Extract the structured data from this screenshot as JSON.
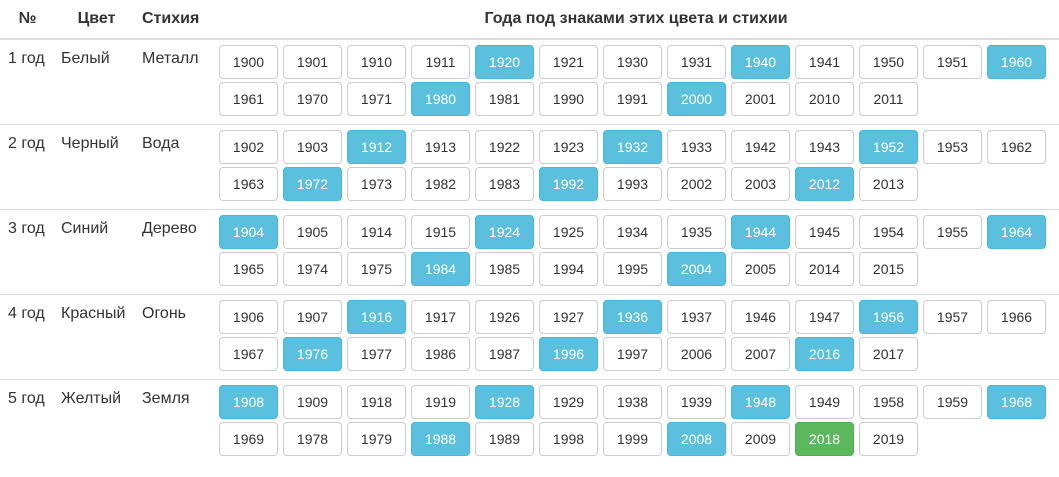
{
  "header": {
    "num": "№",
    "color": "Цвет",
    "element": "Стихия",
    "years": "Года под знаками этих цвета и стихии"
  },
  "colors": {
    "default_bg": "#ffffff",
    "active_bg": "#5bc0de",
    "current_bg": "#5cb85c"
  },
  "rows": [
    {
      "num": "1 год",
      "color": "Белый",
      "element": "Металл",
      "years": [
        {
          "y": "1900",
          "s": ""
        },
        {
          "y": "1901",
          "s": ""
        },
        {
          "y": "1910",
          "s": ""
        },
        {
          "y": "1911",
          "s": ""
        },
        {
          "y": "1920",
          "s": "active"
        },
        {
          "y": "1921",
          "s": ""
        },
        {
          "y": "1930",
          "s": ""
        },
        {
          "y": "1931",
          "s": ""
        },
        {
          "y": "1940",
          "s": "active"
        },
        {
          "y": "1941",
          "s": ""
        },
        {
          "y": "1950",
          "s": ""
        },
        {
          "y": "1951",
          "s": ""
        },
        {
          "y": "1960",
          "s": "active"
        },
        {
          "y": "1961",
          "s": ""
        },
        {
          "y": "1970",
          "s": ""
        },
        {
          "y": "1971",
          "s": ""
        },
        {
          "y": "1980",
          "s": "active"
        },
        {
          "y": "1981",
          "s": ""
        },
        {
          "y": "1990",
          "s": ""
        },
        {
          "y": "1991",
          "s": ""
        },
        {
          "y": "2000",
          "s": "active"
        },
        {
          "y": "2001",
          "s": ""
        },
        {
          "y": "2010",
          "s": ""
        },
        {
          "y": "2011",
          "s": ""
        }
      ]
    },
    {
      "num": "2 год",
      "color": "Черный",
      "element": "Вода",
      "years": [
        {
          "y": "1902",
          "s": ""
        },
        {
          "y": "1903",
          "s": ""
        },
        {
          "y": "1912",
          "s": "active"
        },
        {
          "y": "1913",
          "s": ""
        },
        {
          "y": "1922",
          "s": ""
        },
        {
          "y": "1923",
          "s": ""
        },
        {
          "y": "1932",
          "s": "active"
        },
        {
          "y": "1933",
          "s": ""
        },
        {
          "y": "1942",
          "s": ""
        },
        {
          "y": "1943",
          "s": ""
        },
        {
          "y": "1952",
          "s": "active"
        },
        {
          "y": "1953",
          "s": ""
        },
        {
          "y": "1962",
          "s": ""
        },
        {
          "y": "1963",
          "s": ""
        },
        {
          "y": "1972",
          "s": "active"
        },
        {
          "y": "1973",
          "s": ""
        },
        {
          "y": "1982",
          "s": ""
        },
        {
          "y": "1983",
          "s": ""
        },
        {
          "y": "1992",
          "s": "active"
        },
        {
          "y": "1993",
          "s": ""
        },
        {
          "y": "2002",
          "s": ""
        },
        {
          "y": "2003",
          "s": ""
        },
        {
          "y": "2012",
          "s": "active"
        },
        {
          "y": "2013",
          "s": ""
        }
      ]
    },
    {
      "num": "3 год",
      "color": "Синий",
      "element": "Дерево",
      "years": [
        {
          "y": "1904",
          "s": "active"
        },
        {
          "y": "1905",
          "s": ""
        },
        {
          "y": "1914",
          "s": ""
        },
        {
          "y": "1915",
          "s": ""
        },
        {
          "y": "1924",
          "s": "active"
        },
        {
          "y": "1925",
          "s": ""
        },
        {
          "y": "1934",
          "s": ""
        },
        {
          "y": "1935",
          "s": ""
        },
        {
          "y": "1944",
          "s": "active"
        },
        {
          "y": "1945",
          "s": ""
        },
        {
          "y": "1954",
          "s": ""
        },
        {
          "y": "1955",
          "s": ""
        },
        {
          "y": "1964",
          "s": "active"
        },
        {
          "y": "1965",
          "s": ""
        },
        {
          "y": "1974",
          "s": ""
        },
        {
          "y": "1975",
          "s": ""
        },
        {
          "y": "1984",
          "s": "active"
        },
        {
          "y": "1985",
          "s": ""
        },
        {
          "y": "1994",
          "s": ""
        },
        {
          "y": "1995",
          "s": ""
        },
        {
          "y": "2004",
          "s": "active"
        },
        {
          "y": "2005",
          "s": ""
        },
        {
          "y": "2014",
          "s": ""
        },
        {
          "y": "2015",
          "s": ""
        }
      ]
    },
    {
      "num": "4 год",
      "color": "Красный",
      "element": "Огонь",
      "years": [
        {
          "y": "1906",
          "s": ""
        },
        {
          "y": "1907",
          "s": ""
        },
        {
          "y": "1916",
          "s": "active"
        },
        {
          "y": "1917",
          "s": ""
        },
        {
          "y": "1926",
          "s": ""
        },
        {
          "y": "1927",
          "s": ""
        },
        {
          "y": "1936",
          "s": "active"
        },
        {
          "y": "1937",
          "s": ""
        },
        {
          "y": "1946",
          "s": ""
        },
        {
          "y": "1947",
          "s": ""
        },
        {
          "y": "1956",
          "s": "active"
        },
        {
          "y": "1957",
          "s": ""
        },
        {
          "y": "1966",
          "s": ""
        },
        {
          "y": "1967",
          "s": ""
        },
        {
          "y": "1976",
          "s": "active"
        },
        {
          "y": "1977",
          "s": ""
        },
        {
          "y": "1986",
          "s": ""
        },
        {
          "y": "1987",
          "s": ""
        },
        {
          "y": "1996",
          "s": "active"
        },
        {
          "y": "1997",
          "s": ""
        },
        {
          "y": "2006",
          "s": ""
        },
        {
          "y": "2007",
          "s": ""
        },
        {
          "y": "2016",
          "s": "active"
        },
        {
          "y": "2017",
          "s": ""
        }
      ]
    },
    {
      "num": "5 год",
      "color": "Желтый",
      "element": "Земля",
      "years": [
        {
          "y": "1908",
          "s": "active"
        },
        {
          "y": "1909",
          "s": ""
        },
        {
          "y": "1918",
          "s": ""
        },
        {
          "y": "1919",
          "s": ""
        },
        {
          "y": "1928",
          "s": "active"
        },
        {
          "y": "1929",
          "s": ""
        },
        {
          "y": "1938",
          "s": ""
        },
        {
          "y": "1939",
          "s": ""
        },
        {
          "y": "1948",
          "s": "active"
        },
        {
          "y": "1949",
          "s": ""
        },
        {
          "y": "1958",
          "s": ""
        },
        {
          "y": "1959",
          "s": ""
        },
        {
          "y": "1968",
          "s": "active"
        },
        {
          "y": "1969",
          "s": ""
        },
        {
          "y": "1978",
          "s": ""
        },
        {
          "y": "1979",
          "s": ""
        },
        {
          "y": "1988",
          "s": "active"
        },
        {
          "y": "1989",
          "s": ""
        },
        {
          "y": "1998",
          "s": ""
        },
        {
          "y": "1999",
          "s": ""
        },
        {
          "y": "2008",
          "s": "active"
        },
        {
          "y": "2009",
          "s": ""
        },
        {
          "y": "2018",
          "s": "current"
        },
        {
          "y": "2019",
          "s": ""
        }
      ]
    }
  ]
}
